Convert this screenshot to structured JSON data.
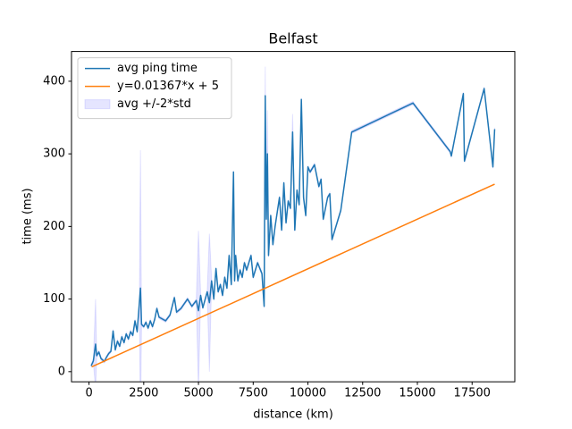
{
  "chart_data": {
    "type": "line",
    "title": "Belfast",
    "x_label": "distance (km)",
    "y_label": "time (ms)",
    "xlim": [
      -800,
      19450
    ],
    "ylim": [
      -14,
      441
    ],
    "xticks": [
      0,
      2500,
      5000,
      7500,
      10000,
      12500,
      15000,
      17500
    ],
    "yticks": [
      0,
      100,
      200,
      300,
      400
    ],
    "legend": "upper left",
    "series": [
      {
        "name": "avg ping time",
        "color": "#1f77b4",
        "x": [
          100,
          200,
          300,
          350,
          450,
          550,
          700,
          800,
          900,
          1000,
          1100,
          1200,
          1300,
          1400,
          1500,
          1600,
          1700,
          1800,
          1900,
          2000,
          2100,
          2200,
          2300,
          2350,
          2400,
          2500,
          2600,
          2700,
          2800,
          2900,
          3000,
          3100,
          3200,
          3500,
          3700,
          3900,
          4000,
          4200,
          4500,
          4700,
          4900,
          5000,
          5100,
          5200,
          5400,
          5500,
          5600,
          5700,
          5800,
          5900,
          6000,
          6100,
          6200,
          6300,
          6400,
          6500,
          6600,
          6650,
          6700,
          6800,
          6900,
          7000,
          7100,
          7200,
          7400,
          7500,
          7700,
          7900,
          8000,
          8050,
          8100,
          8150,
          8200,
          8300,
          8400,
          8500,
          8700,
          8800,
          8900,
          9000,
          9100,
          9200,
          9300,
          9400,
          9500,
          9600,
          9700,
          9800,
          9900,
          10000,
          10100,
          10300,
          10500,
          10600,
          10700,
          10900,
          11000,
          11100,
          11500,
          12000,
          14800,
          16500,
          16550,
          17100,
          17150,
          18050,
          18450,
          18530
        ],
        "values": [
          8,
          15,
          38,
          22,
          27,
          18,
          14,
          20,
          25,
          28,
          56,
          30,
          42,
          35,
          48,
          40,
          52,
          45,
          55,
          50,
          70,
          55,
          95,
          115,
          65,
          62,
          68,
          60,
          70,
          62,
          72,
          87,
          75,
          70,
          78,
          102,
          82,
          87,
          100,
          90,
          98,
          84,
          105,
          88,
          110,
          95,
          125,
          100,
          142,
          110,
          120,
          105,
          130,
          115,
          160,
          120,
          275,
          125,
          160,
          125,
          140,
          130,
          150,
          140,
          160,
          130,
          150,
          135,
          90,
          380,
          210,
          300,
          160,
          215,
          175,
          200,
          240,
          195,
          260,
          205,
          235,
          225,
          330,
          195,
          250,
          230,
          375,
          240,
          215,
          282,
          275,
          285,
          255,
          265,
          210,
          240,
          245,
          182,
          222,
          330,
          370,
          303,
          297,
          383,
          290,
          390,
          282,
          334
        ]
      },
      {
        "name": "y=0.01367*x + 5",
        "color": "#ff7f0e",
        "x": [
          124,
          18530
        ],
        "values": [
          6.7,
          258.3
        ]
      }
    ],
    "band": {
      "name": "avg +/-2*std",
      "color": "#0000ff",
      "values": [
        2,
        3,
        62,
        3,
        2,
        2,
        2,
        2,
        2,
        2,
        2,
        2,
        2,
        2,
        2,
        2,
        2,
        2,
        2,
        2,
        2,
        2,
        2,
        190,
        2,
        2,
        2,
        2,
        2,
        2,
        2,
        2,
        2,
        2,
        2,
        2,
        2,
        2,
        2,
        2,
        2,
        110,
        2,
        2,
        2,
        95,
        2,
        2,
        2,
        2,
        2,
        2,
        2,
        2,
        2,
        2,
        2,
        2,
        2,
        2,
        2,
        2,
        2,
        2,
        2,
        2,
        2,
        2,
        2,
        40,
        2,
        60,
        2,
        2,
        2,
        2,
        2,
        2,
        2,
        2,
        2,
        2,
        25,
        2,
        2,
        2,
        2,
        2,
        2,
        2,
        2,
        2,
        2,
        2,
        2,
        2,
        2,
        2,
        2,
        2,
        2,
        2,
        2,
        2,
        2,
        2,
        2,
        2
      ]
    }
  }
}
